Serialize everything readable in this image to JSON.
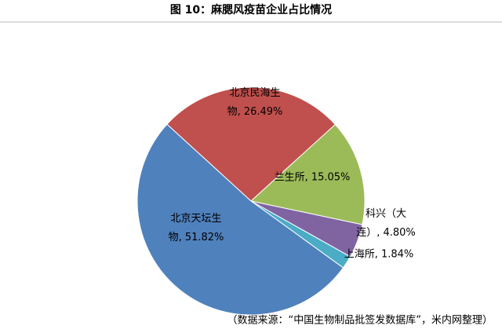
{
  "chart_data": {
    "type": "pie",
    "title": "图 10：麻腮风疫苗企业占比情况",
    "values": [
      26.49,
      15.05,
      4.8,
      1.84,
      51.82
    ],
    "value_labels": [
      "北京民海生物, 26.49%",
      "兰生所, 15.05%",
      "科兴（大连）, 4.80%",
      "上海所, 1.84%",
      "北京天坛生物, 51.82%"
    ],
    "colors": [
      "#c0504d",
      "#9bbb59",
      "#8064a2",
      "#4bacc6",
      "#4f81bd"
    ],
    "source": "（数据来源：“中国生物制品批签发数据库”，米内网整理）"
  }
}
